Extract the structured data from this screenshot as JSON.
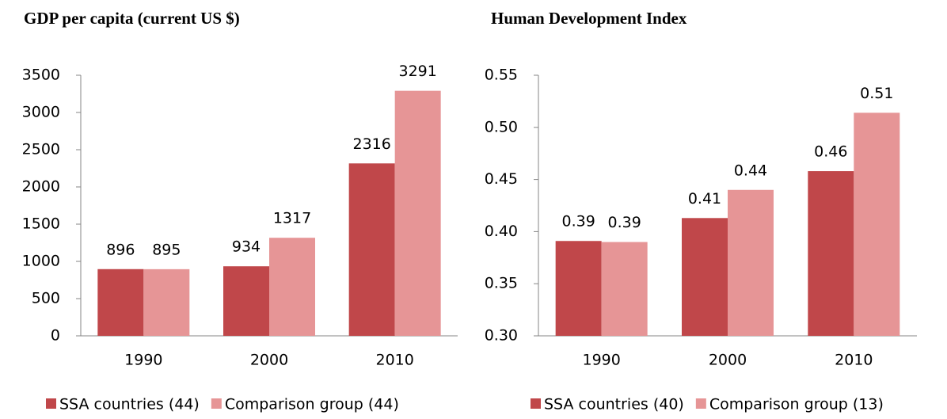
{
  "chart_data": [
    {
      "type": "bar",
      "title": "GDP per capita (current US $)",
      "categories": [
        "1990",
        "2000",
        "2010"
      ],
      "series": [
        {
          "name": "SSA countries (44)",
          "color": "#c0474a",
          "values": [
            896,
            934,
            2316
          ]
        },
        {
          "name": "Comparison group (44)",
          "color": "#e69596",
          "values": [
            895,
            1317,
            3291
          ]
        }
      ],
      "ylim": [
        0,
        3500
      ],
      "yticks": [
        0,
        500,
        1000,
        1500,
        2000,
        2500,
        3000,
        3500
      ],
      "legend": "bottom"
    },
    {
      "type": "bar",
      "title": "Human Development Index",
      "categories": [
        "1990",
        "2000",
        "2010"
      ],
      "series": [
        {
          "name": "SSA countries (40)",
          "color": "#c0474a",
          "values": [
            0.391,
            0.413,
            0.458
          ],
          "value_labels": [
            "0.39",
            "0.41",
            "0.46"
          ]
        },
        {
          "name": "Comparison group (13)",
          "color": "#e69596",
          "values": [
            0.39,
            0.44,
            0.514
          ],
          "value_labels": [
            "0.39",
            "0.44",
            "0.51"
          ]
        }
      ],
      "ylim": [
        0.3,
        0.55
      ],
      "yticks": [
        {
          "value": 0.3,
          "label": "0.30"
        },
        0.35,
        {
          "value": 0.4,
          "label": "0.40"
        },
        0.45,
        {
          "value": 0.5,
          "label": "0.50"
        },
        0.55
      ],
      "legend": "bottom"
    }
  ]
}
